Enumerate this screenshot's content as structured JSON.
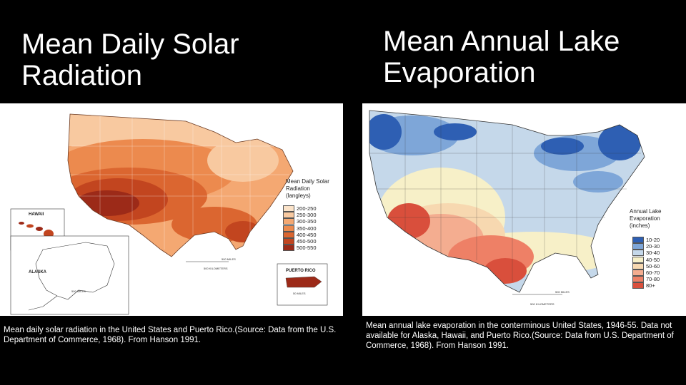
{
  "left": {
    "title": "Mean Daily Solar Radiation",
    "caption": "Mean daily solar radiation in the United States and Puerto Rico.(Source: Data from the U.S. Department of Commerce, 1968). From Hanson 1991.",
    "legend_title": "Mean Daily Solar\nRadiation\n(langleys)",
    "legend_items": [
      {
        "label": "200-250",
        "color": "#fbe3c9"
      },
      {
        "label": "250-300",
        "color": "#f8c9a0"
      },
      {
        "label": "300-350",
        "color": "#f4a872"
      },
      {
        "label": "350-400",
        "color": "#ec8a4e"
      },
      {
        "label": "400-450",
        "color": "#db6630"
      },
      {
        "label": "450-500",
        "color": "#c2451f"
      },
      {
        "label": "500-550",
        "color": "#9c2a18"
      }
    ],
    "inset_hawaii": "HAWAII",
    "inset_alaska": "ALASKA",
    "inset_pr": "PUERTO RICO",
    "scale_label": "500 MILES",
    "scale_km": "500 KILOMETERS",
    "scale_pr": "50 MILES"
  },
  "right": {
    "title": "Mean Annual Lake Evaporation",
    "caption": "Mean annual lake evaporation in the conterminous United States, 1946-55. Data not available for Alaska, Hawaii, and Puerto Rico.(Source: Data from U.S. Department of Commerce, 1968). From Hanson 1991.",
    "legend_title": "Annual Lake\nEvaporation\n(inches)",
    "legend_items": [
      {
        "label": "10-20",
        "color": "#2e5fb3"
      },
      {
        "label": "20-30",
        "color": "#7ea6d8"
      },
      {
        "label": "30-40",
        "color": "#c5d8ea"
      },
      {
        "label": "40-50",
        "color": "#f7f0c8"
      },
      {
        "label": "50-60",
        "color": "#f7d8b0"
      },
      {
        "label": "60-70",
        "color": "#f4ad90"
      },
      {
        "label": "70-80",
        "color": "#ee8066"
      },
      {
        "label": "80+",
        "color": "#d94f3c"
      }
    ],
    "scale_label": "500 MILES",
    "scale_km": "500 KILOMETERS"
  }
}
